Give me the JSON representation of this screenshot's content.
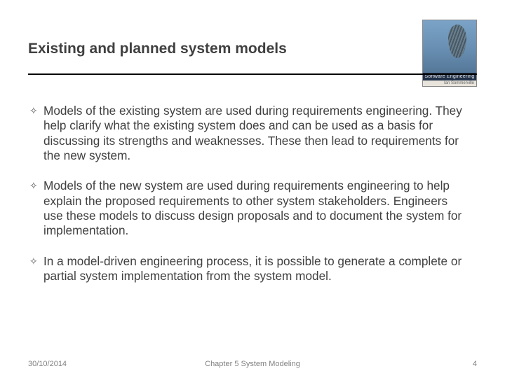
{
  "title": "Existing and planned system models",
  "logo": {
    "strip": "Software Engineering",
    "author": "Ian Sommerville"
  },
  "bullets": [
    "Models of the existing system are used during requirements engineering. They help clarify what the existing system does and can be used as a basis for discussing its strengths and weaknesses. These then lead to requirements for the new system.",
    "Models of the new system are used during requirements engineering to help explain the proposed requirements to other system stakeholders. Engineers use these models to discuss design proposals and to document the system for implementation.",
    "In a model-driven engineering process, it is possible to generate a complete or partial system implementation from the system model."
  ],
  "footer": {
    "date": "30/10/2014",
    "chapter": "Chapter 5 System Modeling",
    "page": "4"
  },
  "colors": {
    "text": "#404040",
    "footer": "#808080",
    "rule": "#000000",
    "background": "#ffffff"
  }
}
